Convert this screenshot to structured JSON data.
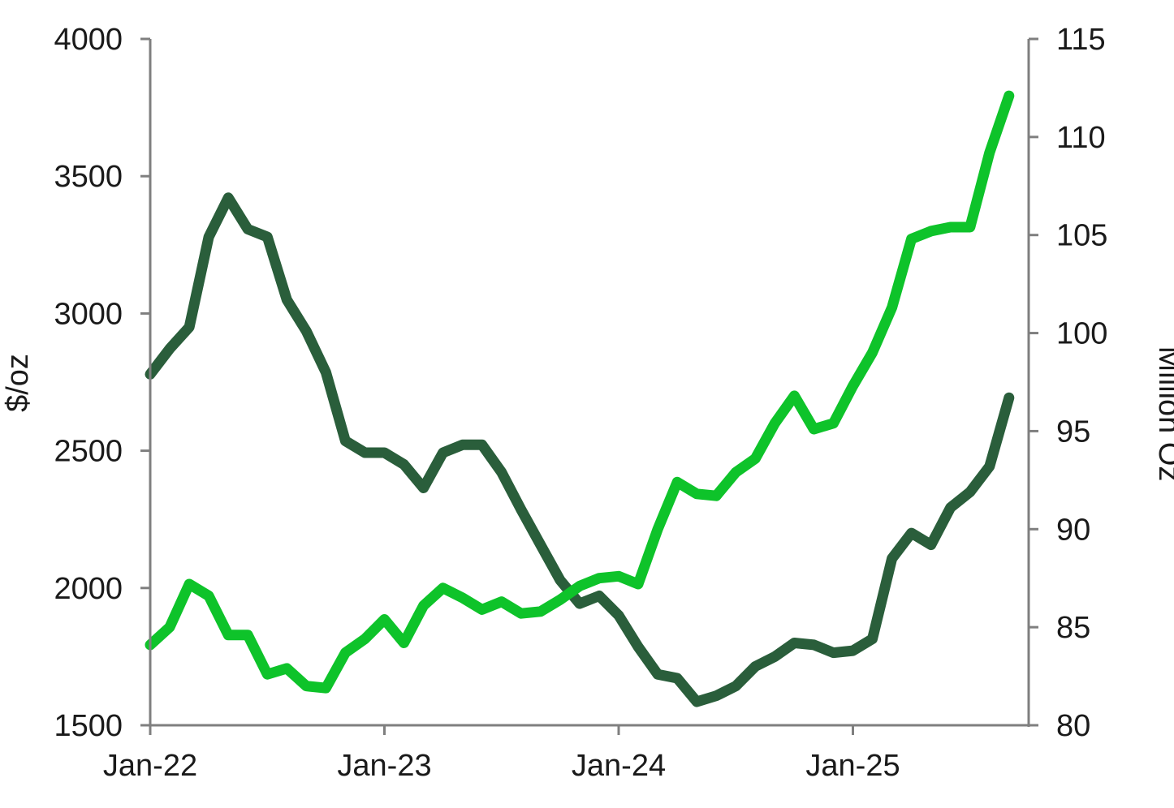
{
  "chart_data": {
    "type": "line",
    "title": "",
    "y_left": {
      "label": "$/oz",
      "range": [
        1500,
        4000
      ],
      "ticks": [
        "4000",
        "3500",
        "3000",
        "2500",
        "2000",
        "1500"
      ],
      "tick_values": [
        4000,
        3500,
        3000,
        2500,
        2000,
        1500
      ]
    },
    "y_right": {
      "label": "Million Oz",
      "range": [
        80,
        115
      ],
      "ticks": [
        "115",
        "110",
        "105",
        "100",
        "95",
        "90",
        "85",
        "80"
      ],
      "tick_values": [
        115,
        110,
        105,
        100,
        95,
        90,
        85,
        80
      ]
    },
    "x_axis": {
      "ticks": [
        "Jan-22",
        "Jan-23",
        "Jan-24",
        "Jan-25"
      ],
      "tick_values": [
        "2022-01",
        "2023-01",
        "2024-01",
        "2025-01"
      ],
      "range": [
        "2022-01",
        "2025-09"
      ]
    },
    "grid": false,
    "legend": "none",
    "series": [
      {
        "axis": "right",
        "color": "#2a5e3b",
        "x": [
          "2022-01",
          "2022-02",
          "2022-03",
          "2022-04",
          "2022-05",
          "2022-06",
          "2022-07",
          "2022-08",
          "2022-09",
          "2022-10",
          "2022-11",
          "2022-12",
          "2023-01",
          "2023-02",
          "2023-03",
          "2023-04",
          "2023-05",
          "2023-06",
          "2023-07",
          "2023-08",
          "2023-09",
          "2023-10",
          "2023-11",
          "2023-12",
          "2024-01",
          "2024-02",
          "2024-03",
          "2024-04",
          "2024-05",
          "2024-06",
          "2024-07",
          "2024-08",
          "2024-09",
          "2024-10",
          "2024-11",
          "2024-12",
          "2025-01",
          "2025-02",
          "2025-03",
          "2025-04",
          "2025-05",
          "2025-06",
          "2025-07",
          "2025-08",
          "2025-09"
        ],
        "values": [
          97.9,
          99.2,
          100.3,
          104.9,
          106.9,
          105.3,
          104.9,
          101.7,
          100.1,
          98.0,
          94.5,
          93.9,
          93.9,
          93.3,
          92.1,
          93.9,
          94.3,
          94.3,
          92.9,
          91.0,
          89.2,
          87.4,
          86.2,
          86.6,
          85.6,
          84.0,
          82.6,
          82.4,
          81.2,
          81.5,
          82.0,
          83.0,
          83.5,
          84.2,
          84.1,
          83.7,
          83.8,
          84.4,
          88.5,
          89.8,
          89.2,
          91.1,
          91.9,
          93.2,
          96.7
        ]
      },
      {
        "axis": "right",
        "color": "#0ec32a",
        "x": [
          "2022-01",
          "2022-02",
          "2022-03",
          "2022-04",
          "2022-05",
          "2022-06",
          "2022-07",
          "2022-08",
          "2022-09",
          "2022-10",
          "2022-11",
          "2022-12",
          "2023-01",
          "2023-02",
          "2023-03",
          "2023-04",
          "2023-05",
          "2023-06",
          "2023-07",
          "2023-08",
          "2023-09",
          "2023-10",
          "2023-11",
          "2023-12",
          "2024-01",
          "2024-02",
          "2024-03",
          "2024-04",
          "2024-05",
          "2024-06",
          "2024-07",
          "2024-08",
          "2024-09",
          "2024-10",
          "2024-11",
          "2024-12",
          "2025-01",
          "2025-02",
          "2025-03",
          "2025-04",
          "2025-05",
          "2025-06",
          "2025-07",
          "2025-08",
          "2025-09"
        ],
        "values": [
          84.1,
          85.0,
          87.2,
          86.6,
          84.6,
          84.6,
          82.6,
          82.9,
          82.0,
          81.9,
          83.7,
          84.4,
          85.4,
          84.2,
          86.1,
          87.0,
          86.5,
          85.9,
          86.3,
          85.7,
          85.8,
          86.4,
          87.1,
          87.5,
          87.6,
          87.2,
          90.0,
          92.4,
          91.8,
          91.7,
          92.9,
          93.6,
          95.4,
          96.8,
          95.1,
          95.4,
          97.3,
          99.0,
          101.3,
          104.8,
          105.2,
          105.4,
          105.4,
          109.2,
          112.1
        ]
      }
    ]
  }
}
